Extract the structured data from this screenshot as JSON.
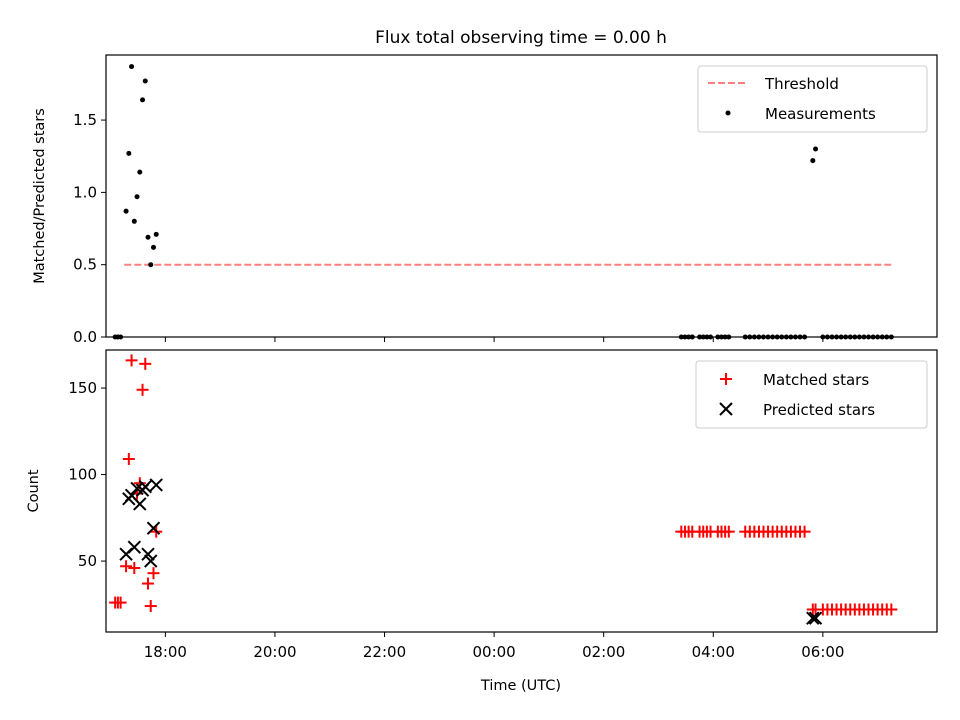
{
  "chart_data": [
    {
      "type": "scatter",
      "title": "Flux total observing time = 0.00 h",
      "ylabel": "Matched/Predicted stars",
      "xlabel": "",
      "xlim": [
        "16:55",
        "08:05"
      ],
      "ylim": [
        0,
        1.95
      ],
      "y_ticks": [
        "0.0",
        "0.5",
        "1.0",
        "1.5"
      ],
      "legend_position": "top-right",
      "grid": false,
      "threshold": {
        "name": "Threshold",
        "color": "#ff7f7f",
        "style": "dashed",
        "y": 0.5,
        "x_range": [
          "17:15",
          "07:15"
        ]
      },
      "series": [
        {
          "name": "Measurements",
          "color": "#000000",
          "marker": "dot",
          "points": [
            [
              "17:05",
              0.0
            ],
            [
              "17:08",
              0.0
            ],
            [
              "17:11",
              0.0
            ],
            [
              "17:17",
              0.87
            ],
            [
              "17:20",
              1.27
            ],
            [
              "17:23",
              1.87
            ],
            [
              "17:26",
              0.8
            ],
            [
              "17:29",
              0.97
            ],
            [
              "17:32",
              1.14
            ],
            [
              "17:35",
              1.64
            ],
            [
              "17:38",
              1.77
            ],
            [
              "17:41",
              0.69
            ],
            [
              "17:44",
              0.5
            ],
            [
              "17:47",
              0.62
            ],
            [
              "17:50",
              0.71
            ],
            [
              "03:25",
              0.0
            ],
            [
              "03:29",
              0.0
            ],
            [
              "03:33",
              0.0
            ],
            [
              "03:37",
              0.0
            ],
            [
              "03:45",
              0.0
            ],
            [
              "03:49",
              0.0
            ],
            [
              "03:53",
              0.0
            ],
            [
              "03:57",
              0.0
            ],
            [
              "04:05",
              0.0
            ],
            [
              "04:09",
              0.0
            ],
            [
              "04:13",
              0.0
            ],
            [
              "04:17",
              0.0
            ],
            [
              "04:35",
              0.0
            ],
            [
              "04:40",
              0.0
            ],
            [
              "04:45",
              0.0
            ],
            [
              "04:50",
              0.0
            ],
            [
              "04:55",
              0.0
            ],
            [
              "05:00",
              0.0
            ],
            [
              "05:05",
              0.0
            ],
            [
              "05:10",
              0.0
            ],
            [
              "05:15",
              0.0
            ],
            [
              "05:20",
              0.0
            ],
            [
              "05:25",
              0.0
            ],
            [
              "05:30",
              0.0
            ],
            [
              "05:35",
              0.0
            ],
            [
              "05:40",
              0.0
            ],
            [
              "05:49",
              1.22
            ],
            [
              "05:52",
              1.3
            ],
            [
              "06:00",
              0.0
            ],
            [
              "06:05",
              0.0
            ],
            [
              "06:10",
              0.0
            ],
            [
              "06:15",
              0.0
            ],
            [
              "06:20",
              0.0
            ],
            [
              "06:25",
              0.0
            ],
            [
              "06:30",
              0.0
            ],
            [
              "06:35",
              0.0
            ],
            [
              "06:40",
              0.0
            ],
            [
              "06:45",
              0.0
            ],
            [
              "06:50",
              0.0
            ],
            [
              "06:55",
              0.0
            ],
            [
              "07:00",
              0.0
            ],
            [
              "07:05",
              0.0
            ],
            [
              "07:10",
              0.0
            ],
            [
              "07:15",
              0.0
            ]
          ]
        }
      ]
    },
    {
      "type": "scatter",
      "title": "",
      "ylabel": "Count",
      "xlabel": "Time (UTC)",
      "xlim": [
        "16:55",
        "08:05"
      ],
      "ylim": [
        9,
        172
      ],
      "y_ticks": [
        "50",
        "100",
        "150"
      ],
      "x_ticks": [
        "18:00",
        "20:00",
        "22:00",
        "00:00",
        "02:00",
        "04:00",
        "06:00"
      ],
      "legend_position": "top-right",
      "grid": false,
      "series": [
        {
          "name": "Matched stars",
          "color": "#ff0000",
          "marker": "plus",
          "points": [
            [
              "17:05",
              26
            ],
            [
              "17:08",
              26
            ],
            [
              "17:11",
              26
            ],
            [
              "17:17",
              47
            ],
            [
              "17:20",
              109
            ],
            [
              "17:23",
              166
            ],
            [
              "17:26",
              46
            ],
            [
              "17:29",
              89
            ],
            [
              "17:32",
              95
            ],
            [
              "17:35",
              149
            ],
            [
              "17:38",
              164
            ],
            [
              "17:41",
              37
            ],
            [
              "17:44",
              24
            ],
            [
              "17:47",
              43
            ],
            [
              "17:50",
              67
            ],
            [
              "03:25",
              67
            ],
            [
              "03:29",
              67
            ],
            [
              "03:33",
              67
            ],
            [
              "03:37",
              67
            ],
            [
              "03:45",
              67
            ],
            [
              "03:49",
              67
            ],
            [
              "03:53",
              67
            ],
            [
              "03:57",
              67
            ],
            [
              "04:05",
              67
            ],
            [
              "04:09",
              67
            ],
            [
              "04:13",
              67
            ],
            [
              "04:17",
              67
            ],
            [
              "04:35",
              67
            ],
            [
              "04:40",
              67
            ],
            [
              "04:45",
              67
            ],
            [
              "04:50",
              67
            ],
            [
              "04:55",
              67
            ],
            [
              "05:00",
              67
            ],
            [
              "05:05",
              67
            ],
            [
              "05:10",
              67
            ],
            [
              "05:15",
              67
            ],
            [
              "05:20",
              67
            ],
            [
              "05:25",
              67
            ],
            [
              "05:30",
              67
            ],
            [
              "05:35",
              67
            ],
            [
              "05:40",
              67
            ],
            [
              "05:49",
              22
            ],
            [
              "05:52",
              22
            ],
            [
              "06:00",
              22
            ],
            [
              "06:05",
              22
            ],
            [
              "06:10",
              22
            ],
            [
              "06:15",
              22
            ],
            [
              "06:20",
              22
            ],
            [
              "06:25",
              22
            ],
            [
              "06:30",
              22
            ],
            [
              "06:35",
              22
            ],
            [
              "06:40",
              22
            ],
            [
              "06:45",
              22
            ],
            [
              "06:50",
              22
            ],
            [
              "06:55",
              22
            ],
            [
              "07:00",
              22
            ],
            [
              "07:05",
              22
            ],
            [
              "07:10",
              22
            ],
            [
              "07:15",
              22
            ]
          ]
        },
        {
          "name": "Predicted stars",
          "color": "#000000",
          "marker": "x",
          "points": [
            [
              "17:17",
              54
            ],
            [
              "17:20",
              86
            ],
            [
              "17:23",
              88
            ],
            [
              "17:26",
              58
            ],
            [
              "17:29",
              92
            ],
            [
              "17:32",
              83
            ],
            [
              "17:35",
              91
            ],
            [
              "17:38",
              93
            ],
            [
              "17:41",
              54
            ],
            [
              "17:44",
              50
            ],
            [
              "17:47",
              69
            ],
            [
              "17:50",
              94
            ],
            [
              "05:49",
              17
            ],
            [
              "05:52",
              17
            ]
          ]
        }
      ]
    }
  ]
}
